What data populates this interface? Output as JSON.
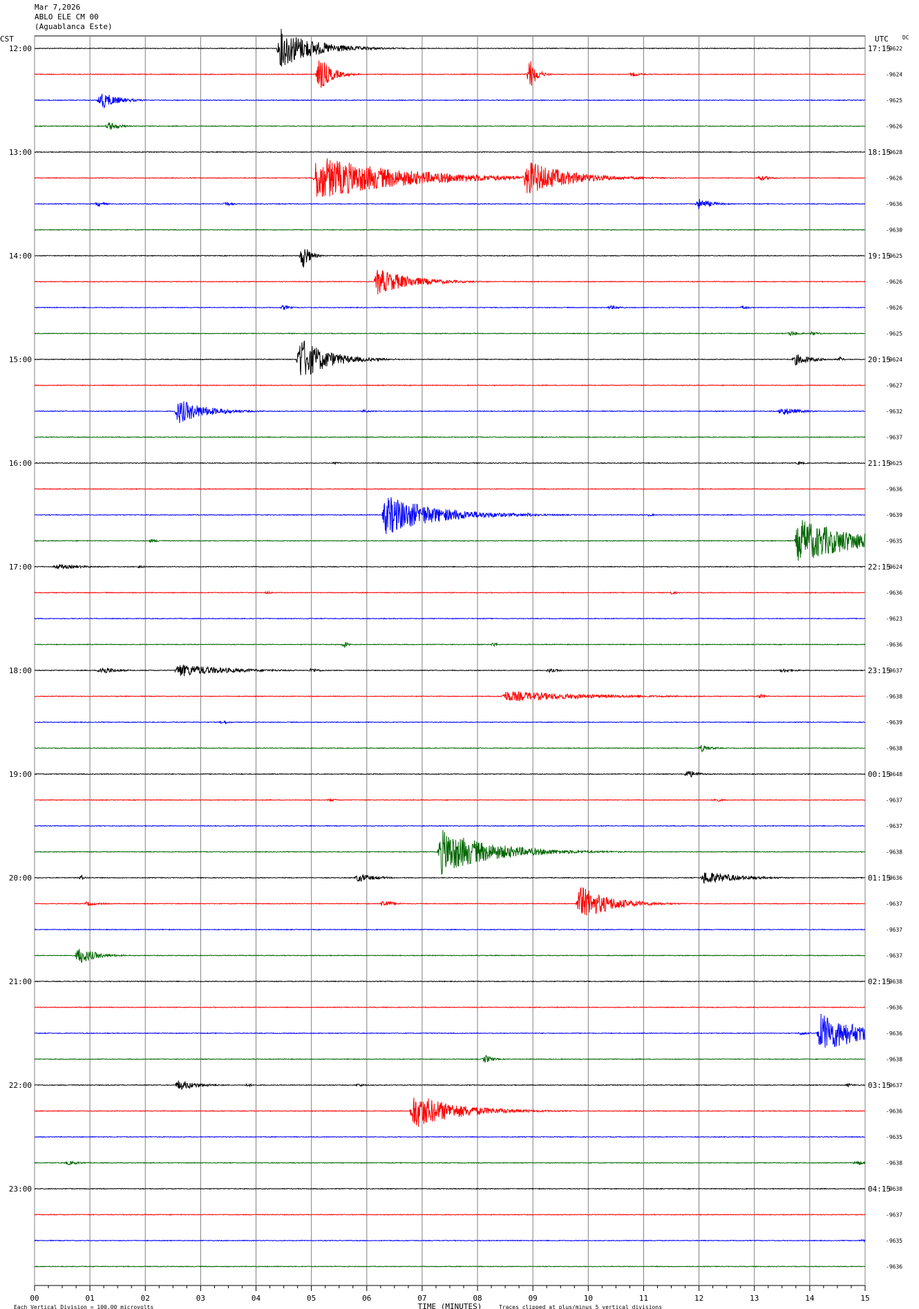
{
  "header": {
    "date": "Mar 7,2026",
    "station": "ABLO ELE CM 00",
    "location": "(Aguablanca Este)"
  },
  "chart_data": {
    "type": "line",
    "title": "",
    "left_axis_label": "CST",
    "right_axis_label": "UTC",
    "dc_label": "DC",
    "xlabel": "TIME (MINUTES)",
    "xlim": [
      0,
      15
    ],
    "x_ticks": [
      "00",
      "01",
      "02",
      "03",
      "04",
      "05",
      "06",
      "07",
      "08",
      "09",
      "10",
      "11",
      "12",
      "13",
      "14",
      "15"
    ],
    "traces_per_hour": 4,
    "trace_colors": [
      "#000000",
      "#ff0000",
      "#0000ff",
      "#006600"
    ],
    "left_hour_labels": [
      "12:00",
      "13:00",
      "14:00",
      "15:00",
      "16:00",
      "17:00",
      "18:00",
      "19:00",
      "20:00",
      "21:00",
      "22:00",
      "23:00"
    ],
    "right_hour_labels": [
      "17:15",
      "18:15",
      "19:15",
      "20:15",
      "21:15",
      "22:15",
      "23:15",
      "00:15",
      "01:15",
      "02:15",
      "03:15",
      "04:15"
    ],
    "dc_offsets": [
      "-9622",
      "-9624",
      "-9625",
      "-9626",
      "-9628",
      "-9626",
      "-9636",
      "-9630",
      "-9625",
      "-9626",
      "-9626",
      "-9625",
      "-9624",
      "-9627",
      "-9632",
      "-9637",
      "-9625",
      "-9636",
      "-9639",
      "-9635",
      "-9624",
      "-9636",
      "-9623",
      "-9636",
      "-9637",
      "-9638",
      "-9639",
      "-9638",
      "-9648",
      "-9637",
      "-9637",
      "-9638",
      "-9636",
      "-9637",
      "-9637",
      "-9637",
      "-9638",
      "-9636",
      "-9636",
      "-9638",
      "-9637",
      "-9636",
      "-9635",
      "-9638",
      "-9638",
      "-9637",
      "-9635",
      "-9636"
    ],
    "events": [
      {
        "trace": 0,
        "t": 4.45,
        "amp": 4.5,
        "dur": 1.0
      },
      {
        "trace": 1,
        "t": 5.15,
        "amp": 4.0,
        "dur": 0.35
      },
      {
        "trace": 1,
        "t": 10.8,
        "amp": 0.5,
        "dur": 0.3
      },
      {
        "trace": 1,
        "t": 8.95,
        "amp": 3.5,
        "dur": 0.2
      },
      {
        "trace": 2,
        "t": 1.2,
        "amp": 2.0,
        "dur": 0.5
      },
      {
        "trace": 3,
        "t": 1.35,
        "amp": 1.0,
        "dur": 0.3
      },
      {
        "trace": 5,
        "t": 5.1,
        "amp": 5.0,
        "dur": 2.5
      },
      {
        "trace": 5,
        "t": 8.9,
        "amp": 4.0,
        "dur": 1.2
      },
      {
        "trace": 5,
        "t": 13.1,
        "amp": 0.6,
        "dur": 0.4
      },
      {
        "trace": 6,
        "t": 1.15,
        "amp": 0.6,
        "dur": 0.2
      },
      {
        "trace": 6,
        "t": 3.45,
        "amp": 0.5,
        "dur": 0.2
      },
      {
        "trace": 6,
        "t": 12.0,
        "amp": 1.2,
        "dur": 0.4
      },
      {
        "trace": 8,
        "t": 4.85,
        "amp": 3.0,
        "dur": 0.2
      },
      {
        "trace": 9,
        "t": 6.2,
        "amp": 3.0,
        "dur": 1.0
      },
      {
        "trace": 10,
        "t": 4.5,
        "amp": 0.6,
        "dur": 0.2
      },
      {
        "trace": 10,
        "t": 10.4,
        "amp": 0.5,
        "dur": 0.3
      },
      {
        "trace": 10,
        "t": 12.8,
        "amp": 0.4,
        "dur": 0.2
      },
      {
        "trace": 11,
        "t": 13.65,
        "amp": 0.6,
        "dur": 0.3
      },
      {
        "trace": 11,
        "t": 14.05,
        "amp": 0.5,
        "dur": 0.2
      },
      {
        "trace": 12,
        "t": 4.8,
        "amp": 5.0,
        "dur": 0.8
      },
      {
        "trace": 12,
        "t": 6.2,
        "amp": 0.4,
        "dur": 0.2
      },
      {
        "trace": 12,
        "t": 13.75,
        "amp": 1.3,
        "dur": 0.5
      },
      {
        "trace": 12,
        "t": 14.55,
        "amp": 0.6,
        "dur": 0.1
      },
      {
        "trace": 14,
        "t": 2.6,
        "amp": 2.8,
        "dur": 0.8
      },
      {
        "trace": 14,
        "t": 13.5,
        "amp": 1.0,
        "dur": 0.5
      },
      {
        "trace": 14,
        "t": 5.95,
        "amp": 0.3,
        "dur": 0.3
      },
      {
        "trace": 16,
        "t": 5.45,
        "amp": 0.4,
        "dur": 0.1
      },
      {
        "trace": 16,
        "t": 13.8,
        "amp": 0.4,
        "dur": 0.2
      },
      {
        "trace": 18,
        "t": 6.35,
        "amp": 4.5,
        "dur": 1.5
      },
      {
        "trace": 18,
        "t": 8.9,
        "amp": 0.5,
        "dur": 0.3
      },
      {
        "trace": 18,
        "t": 11.1,
        "amp": 0.3,
        "dur": 0.2
      },
      {
        "trace": 19,
        "t": 13.8,
        "amp": 5.0,
        "dur": 1.8
      },
      {
        "trace": 19,
        "t": 2.1,
        "amp": 0.4,
        "dur": 0.3
      },
      {
        "trace": 20,
        "t": 0.4,
        "amp": 0.6,
        "dur": 0.8
      },
      {
        "trace": 20,
        "t": 1.9,
        "amp": 0.3,
        "dur": 0.2
      },
      {
        "trace": 21,
        "t": 4.2,
        "amp": 0.3,
        "dur": 0.2
      },
      {
        "trace": 21,
        "t": 11.5,
        "amp": 0.4,
        "dur": 0.2
      },
      {
        "trace": 23,
        "t": 5.6,
        "amp": 0.8,
        "dur": 0.1
      },
      {
        "trace": 23,
        "t": 8.3,
        "amp": 0.6,
        "dur": 0.1
      },
      {
        "trace": 24,
        "t": 1.2,
        "amp": 1.0,
        "dur": 0.4
      },
      {
        "trace": 24,
        "t": 2.6,
        "amp": 1.5,
        "dur": 1.4
      },
      {
        "trace": 24,
        "t": 5.0,
        "amp": 0.5,
        "dur": 0.3
      },
      {
        "trace": 24,
        "t": 9.3,
        "amp": 0.5,
        "dur": 0.3
      },
      {
        "trace": 24,
        "t": 13.5,
        "amp": 0.5,
        "dur": 0.4
      },
      {
        "trace": 25,
        "t": 8.5,
        "amp": 1.2,
        "dur": 2.5
      },
      {
        "trace": 25,
        "t": 13.1,
        "amp": 0.5,
        "dur": 0.2
      },
      {
        "trace": 26,
        "t": 3.4,
        "amp": 0.5,
        "dur": 0.2
      },
      {
        "trace": 27,
        "t": 12.05,
        "amp": 0.8,
        "dur": 0.3
      },
      {
        "trace": 28,
        "t": 11.8,
        "amp": 1.0,
        "dur": 0.3
      },
      {
        "trace": 29,
        "t": 12.3,
        "amp": 0.5,
        "dur": 0.2
      },
      {
        "trace": 29,
        "t": 5.35,
        "amp": 0.4,
        "dur": 0.2
      },
      {
        "trace": 31,
        "t": 7.35,
        "amp": 5.0,
        "dur": 1.5
      },
      {
        "trace": 32,
        "t": 5.85,
        "amp": 1.0,
        "dur": 0.5
      },
      {
        "trace": 32,
        "t": 12.1,
        "amp": 1.5,
        "dur": 1.0
      },
      {
        "trace": 32,
        "t": 0.85,
        "amp": 0.6,
        "dur": 0.1
      },
      {
        "trace": 33,
        "t": 9.85,
        "amp": 4.0,
        "dur": 0.9
      },
      {
        "trace": 33,
        "t": 6.3,
        "amp": 0.9,
        "dur": 0.3
      },
      {
        "trace": 33,
        "t": 0.95,
        "amp": 0.5,
        "dur": 0.4
      },
      {
        "trace": 35,
        "t": 0.8,
        "amp": 2.0,
        "dur": 0.5
      },
      {
        "trace": 38,
        "t": 14.2,
        "amp": 4.5,
        "dur": 1.3
      },
      {
        "trace": 38,
        "t": 13.85,
        "amp": 0.5,
        "dur": 0.2
      },
      {
        "trace": 39,
        "t": 8.15,
        "amp": 1.0,
        "dur": 0.2
      },
      {
        "trace": 40,
        "t": 2.6,
        "amp": 1.2,
        "dur": 0.6
      },
      {
        "trace": 40,
        "t": 3.85,
        "amp": 0.4,
        "dur": 0.2
      },
      {
        "trace": 40,
        "t": 5.85,
        "amp": 0.4,
        "dur": 0.2
      },
      {
        "trace": 40,
        "t": 14.7,
        "amp": 0.4,
        "dur": 0.2
      },
      {
        "trace": 41,
        "t": 6.85,
        "amp": 4.0,
        "dur": 1.3
      },
      {
        "trace": 43,
        "t": 0.6,
        "amp": 0.5,
        "dur": 0.4
      },
      {
        "trace": 43,
        "t": 14.85,
        "amp": 0.6,
        "dur": 0.3
      },
      {
        "trace": 46,
        "t": 14.95,
        "amp": 0.4,
        "dur": 0.1
      }
    ]
  },
  "footer": {
    "scale_text": "Each Vertical Division =  100.00 microvolts",
    "clip_text": "Traces clipped at plus/minus 5 vertical divisions"
  }
}
